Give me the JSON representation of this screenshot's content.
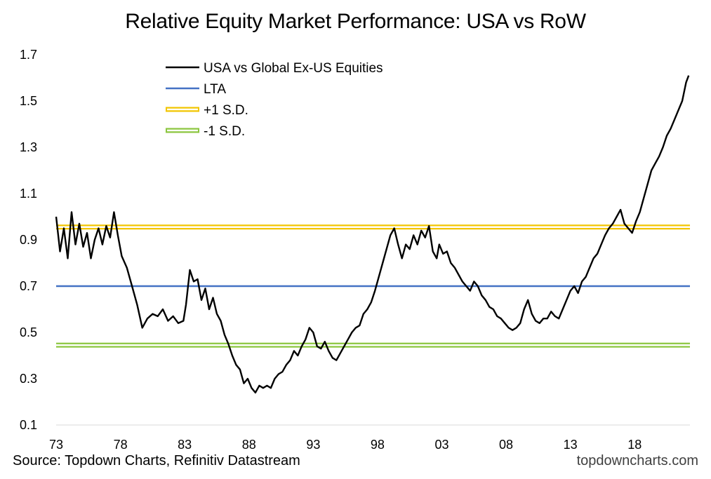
{
  "chart_data": {
    "type": "line",
    "title": "Relative Equity Market Performance: USA vs RoW",
    "xlabel": "",
    "ylabel": "",
    "xlim": [
      1973,
      2022.3
    ],
    "ylim": [
      0.1,
      1.7
    ],
    "x_ticks": [
      {
        "value": 1973,
        "label": "73"
      },
      {
        "value": 1978,
        "label": "78"
      },
      {
        "value": 1983,
        "label": "83"
      },
      {
        "value": 1988,
        "label": "88"
      },
      {
        "value": 1993,
        "label": "93"
      },
      {
        "value": 1998,
        "label": "98"
      },
      {
        "value": 2003,
        "label": "03"
      },
      {
        "value": 2008,
        "label": "08"
      },
      {
        "value": 2013,
        "label": "13"
      },
      {
        "value": 2018,
        "label": "18"
      }
    ],
    "y_ticks": [
      {
        "value": 1.7,
        "label": "1.7"
      },
      {
        "value": 1.5,
        "label": "1.5"
      },
      {
        "value": 1.3,
        "label": "1.3"
      },
      {
        "value": 1.1,
        "label": "1.1"
      },
      {
        "value": 0.9,
        "label": "0.9"
      },
      {
        "value": 0.7,
        "label": "0.7"
      },
      {
        "value": 0.5,
        "label": "0.5"
      },
      {
        "value": 0.3,
        "label": "0.3"
      },
      {
        "value": 0.1,
        "label": "0.1"
      }
    ],
    "grid": false,
    "legend_position": "top-left",
    "series": [
      {
        "name": "USA vs Global Ex-US Equities",
        "color": "#000000",
        "x": [
          1973.0,
          1973.3,
          1973.6,
          1973.9,
          1974.2,
          1974.5,
          1974.8,
          1975.1,
          1975.4,
          1975.7,
          1976.0,
          1976.3,
          1976.6,
          1976.9,
          1977.2,
          1977.5,
          1977.8,
          1978.1,
          1978.5,
          1978.9,
          1979.3,
          1979.7,
          1980.1,
          1980.5,
          1980.9,
          1981.3,
          1981.7,
          1982.1,
          1982.5,
          1982.9,
          1983.1,
          1983.4,
          1983.7,
          1984.0,
          1984.3,
          1984.6,
          1984.9,
          1985.2,
          1985.5,
          1985.8,
          1986.1,
          1986.4,
          1986.7,
          1987.0,
          1987.3,
          1987.6,
          1987.9,
          1988.2,
          1988.5,
          1988.8,
          1989.1,
          1989.4,
          1989.7,
          1990.0,
          1990.3,
          1990.6,
          1990.9,
          1991.2,
          1991.5,
          1991.8,
          1992.1,
          1992.4,
          1992.7,
          1993.0,
          1993.3,
          1993.6,
          1993.9,
          1994.2,
          1994.5,
          1994.8,
          1995.1,
          1995.4,
          1995.7,
          1996.0,
          1996.3,
          1996.6,
          1996.9,
          1997.2,
          1997.5,
          1997.8,
          1998.1,
          1998.4,
          1998.7,
          1999.0,
          1999.3,
          1999.6,
          1999.9,
          2000.2,
          2000.5,
          2000.8,
          2001.1,
          2001.4,
          2001.7,
          2002.0,
          2002.3,
          2002.6,
          2002.8,
          2003.1,
          2003.4,
          2003.7,
          2004.0,
          2004.3,
          2004.6,
          2004.9,
          2005.2,
          2005.5,
          2005.8,
          2006.1,
          2006.4,
          2006.7,
          2007.0,
          2007.3,
          2007.6,
          2007.9,
          2008.2,
          2008.5,
          2008.8,
          2009.1,
          2009.4,
          2009.7,
          2010.0,
          2010.3,
          2010.6,
          2010.9,
          2011.2,
          2011.5,
          2011.8,
          2012.1,
          2012.4,
          2012.7,
          2013.0,
          2013.3,
          2013.6,
          2013.9,
          2014.2,
          2014.5,
          2014.8,
          2015.1,
          2015.4,
          2015.7,
          2016.0,
          2016.3,
          2016.6,
          2016.9,
          2017.2,
          2017.5,
          2017.8,
          2018.1,
          2018.4,
          2018.7,
          2019.0,
          2019.3,
          2019.6,
          2019.9,
          2020.2,
          2020.5,
          2020.8,
          2021.1,
          2021.4,
          2021.7,
          2022.0,
          2022.2
        ],
        "values": [
          1.0,
          0.85,
          0.95,
          0.82,
          1.02,
          0.88,
          0.97,
          0.87,
          0.93,
          0.82,
          0.9,
          0.95,
          0.88,
          0.96,
          0.91,
          1.02,
          0.92,
          0.83,
          0.78,
          0.7,
          0.62,
          0.52,
          0.56,
          0.58,
          0.57,
          0.6,
          0.55,
          0.57,
          0.54,
          0.55,
          0.62,
          0.77,
          0.72,
          0.73,
          0.64,
          0.69,
          0.6,
          0.65,
          0.58,
          0.55,
          0.49,
          0.45,
          0.4,
          0.36,
          0.34,
          0.28,
          0.3,
          0.26,
          0.24,
          0.27,
          0.26,
          0.27,
          0.26,
          0.3,
          0.32,
          0.33,
          0.36,
          0.38,
          0.42,
          0.4,
          0.44,
          0.47,
          0.52,
          0.5,
          0.44,
          0.43,
          0.46,
          0.42,
          0.39,
          0.38,
          0.41,
          0.44,
          0.47,
          0.5,
          0.52,
          0.53,
          0.58,
          0.6,
          0.63,
          0.68,
          0.74,
          0.8,
          0.86,
          0.92,
          0.95,
          0.88,
          0.82,
          0.88,
          0.86,
          0.92,
          0.88,
          0.94,
          0.91,
          0.96,
          0.85,
          0.82,
          0.88,
          0.84,
          0.85,
          0.8,
          0.78,
          0.75,
          0.72,
          0.7,
          0.68,
          0.72,
          0.7,
          0.66,
          0.64,
          0.61,
          0.6,
          0.57,
          0.56,
          0.54,
          0.52,
          0.51,
          0.52,
          0.54,
          0.6,
          0.64,
          0.58,
          0.55,
          0.54,
          0.56,
          0.56,
          0.59,
          0.57,
          0.56,
          0.6,
          0.64,
          0.68,
          0.7,
          0.67,
          0.72,
          0.74,
          0.78,
          0.82,
          0.84,
          0.88,
          0.92,
          0.95,
          0.97,
          1.0,
          1.03,
          0.97,
          0.95,
          0.93,
          0.98,
          1.02,
          1.08,
          1.14,
          1.2,
          1.23,
          1.26,
          1.3,
          1.35,
          1.38,
          1.42,
          1.46,
          1.5,
          1.58,
          1.61
        ]
      },
      {
        "name": "LTA",
        "color": "#4472C4",
        "x": [
          1973,
          2022.3
        ],
        "values": [
          0.7,
          0.7
        ]
      },
      {
        "name": "+1 S.D.",
        "color": "#F2C500",
        "x": [
          1973,
          2022.3
        ],
        "values": [
          0.955,
          0.955
        ]
      },
      {
        "name": "-1 S.D.",
        "color": "#8CC63F",
        "x": [
          1973,
          2022.3
        ],
        "values": [
          0.445,
          0.445
        ]
      }
    ]
  },
  "footer": {
    "source": "Source: Topdown Charts, Refinitiv Datastream",
    "brand": "topdowncharts.com"
  }
}
